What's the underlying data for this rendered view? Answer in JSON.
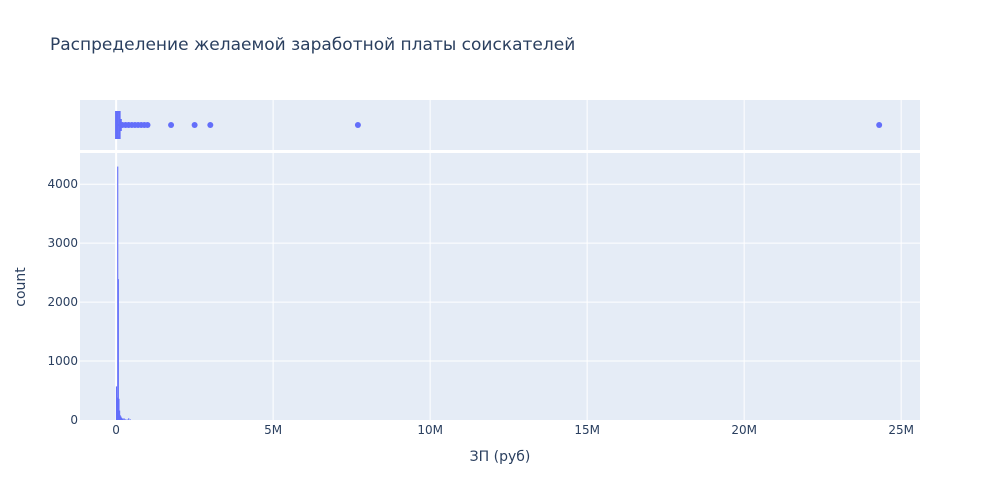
{
  "chart_data": {
    "type": "histogram",
    "title": "Распределение желаемой заработной платы соискателей",
    "xlabel": "ЗП (руб)",
    "ylabel": "count",
    "x_tick_labels": [
      "0",
      "5M",
      "10M",
      "15M",
      "20M",
      "25M"
    ],
    "x_ticks": [
      0,
      5000000,
      10000000,
      15000000,
      20000000,
      25000000
    ],
    "y_tick_labels": [
      "0",
      "1000",
      "2000",
      "3000",
      "4000"
    ],
    "y_ticks": [
      0,
      1000,
      2000,
      3000,
      4000
    ],
    "xlim": [
      -1150000,
      25600000
    ],
    "ylim": [
      0,
      4530
    ],
    "grid": true,
    "colors": {
      "bar": "#636efa",
      "plot_bg": "#e5ecf6",
      "grid": "#ffffff",
      "text": "#2a3f5f"
    },
    "histogram": {
      "bins": [
        {
          "x": 10000,
          "count": 570
        },
        {
          "x": 30000,
          "count": 380
        },
        {
          "x": 50000,
          "count": 4300
        },
        {
          "x": 70000,
          "count": 2390
        },
        {
          "x": 90000,
          "count": 360
        },
        {
          "x": 110000,
          "count": 160
        },
        {
          "x": 130000,
          "count": 80
        },
        {
          "x": 150000,
          "count": 60
        },
        {
          "x": 170000,
          "count": 40
        },
        {
          "x": 190000,
          "count": 30
        },
        {
          "x": 210000,
          "count": 20
        },
        {
          "x": 250000,
          "count": 30
        },
        {
          "x": 270000,
          "count": 10
        },
        {
          "x": 300000,
          "count": 10
        },
        {
          "x": 350000,
          "count": 10
        },
        {
          "x": 400000,
          "count": 30
        },
        {
          "x": 450000,
          "count": 10
        }
      ]
    },
    "boxplot": {
      "min": 0,
      "q1": 30000,
      "median": 50000,
      "q3": 80000,
      "upper_fence": 150000,
      "outliers": [
        200000,
        300000,
        400000,
        500000,
        600000,
        700000,
        800000,
        900000,
        1000000,
        1750000,
        2500000,
        3000000,
        7700000,
        24300000
      ]
    }
  }
}
